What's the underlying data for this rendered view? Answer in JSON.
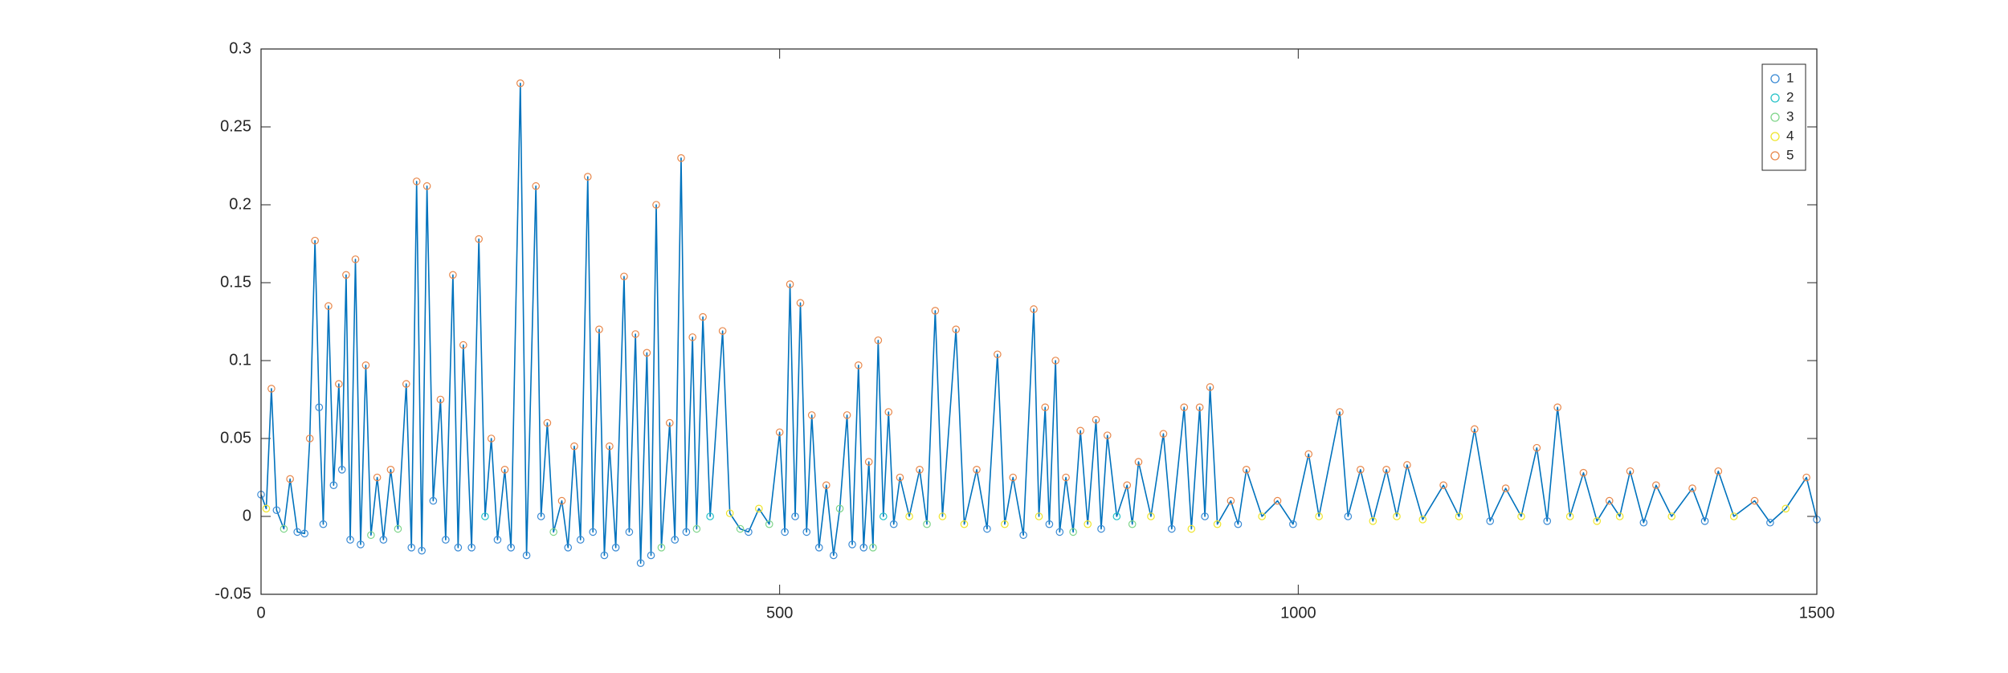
{
  "chart_data": {
    "type": "line",
    "xlim": [
      0,
      1500
    ],
    "ylim": [
      -0.05,
      0.3
    ],
    "xticks": [
      0,
      500,
      1000,
      1500
    ],
    "yticks": [
      -0.05,
      0,
      0.05,
      0.1,
      0.15,
      0.2,
      0.25,
      0.3
    ],
    "grid": false,
    "legend": "northeast",
    "line": {
      "color": "#0072bd",
      "x": [
        0,
        5,
        10,
        15,
        22,
        28,
        35,
        42,
        47,
        52,
        56,
        60,
        65,
        70,
        75,
        78,
        82,
        86,
        91,
        96,
        101,
        106,
        112,
        118,
        125,
        132,
        140,
        145,
        150,
        155,
        160,
        166,
        173,
        178,
        185,
        190,
        195,
        203,
        210,
        216,
        222,
        228,
        235,
        241,
        250,
        256,
        265,
        270,
        276,
        282,
        290,
        296,
        302,
        308,
        315,
        320,
        326,
        331,
        336,
        342,
        350,
        355,
        361,
        366,
        372,
        376,
        381,
        386,
        394,
        399,
        405,
        410,
        416,
        420,
        426,
        433,
        445,
        452,
        462,
        470,
        480,
        490,
        500,
        505,
        510,
        515,
        520,
        526,
        531,
        538,
        545,
        552,
        558,
        565,
        570,
        576,
        581,
        586,
        590,
        595,
        600,
        605,
        610,
        616,
        625,
        635,
        642,
        650,
        657,
        670,
        678,
        690,
        700,
        710,
        717,
        725,
        735,
        745,
        750,
        756,
        760,
        766,
        770,
        776,
        783,
        790,
        797,
        805,
        810,
        816,
        825,
        835,
        840,
        846,
        858,
        870,
        878,
        890,
        897,
        905,
        910,
        915,
        922,
        935,
        942,
        950,
        965,
        980,
        995,
        1010,
        1020,
        1040,
        1048,
        1060,
        1072,
        1085,
        1095,
        1105,
        1120,
        1140,
        1155,
        1170,
        1185,
        1200,
        1215,
        1230,
        1240,
        1250,
        1262,
        1275,
        1288,
        1300,
        1310,
        1320,
        1333,
        1345,
        1360,
        1380,
        1392,
        1405,
        1420,
        1440,
        1455,
        1470,
        1490,
        1500
      ],
      "values": [
        0.014,
        0.005,
        0.082,
        0.004,
        -0.008,
        0.024,
        -0.01,
        -0.011,
        0.05,
        0.177,
        0.07,
        -0.005,
        0.135,
        0.02,
        0.085,
        0.03,
        0.155,
        -0.015,
        0.165,
        -0.018,
        0.097,
        -0.012,
        0.025,
        -0.015,
        0.03,
        -0.008,
        0.085,
        -0.02,
        0.215,
        -0.022,
        0.212,
        0.01,
        0.075,
        -0.015,
        0.155,
        -0.02,
        0.11,
        -0.02,
        0.178,
        0.0,
        0.05,
        -0.015,
        0.03,
        -0.02,
        0.278,
        -0.025,
        0.212,
        0.0,
        0.06,
        -0.01,
        0.01,
        -0.02,
        0.045,
        -0.015,
        0.218,
        -0.01,
        0.12,
        -0.025,
        0.045,
        -0.02,
        0.154,
        -0.01,
        0.117,
        -0.03,
        0.105,
        -0.025,
        0.2,
        -0.02,
        0.06,
        -0.015,
        0.23,
        -0.01,
        0.115,
        -0.008,
        0.128,
        0.0,
        0.119,
        0.002,
        -0.008,
        -0.01,
        0.005,
        -0.005,
        0.054,
        -0.01,
        0.149,
        0.0,
        0.137,
        -0.01,
        0.065,
        -0.02,
        0.02,
        -0.025,
        0.005,
        0.065,
        -0.018,
        0.097,
        -0.02,
        0.035,
        -0.02,
        0.113,
        0.0,
        0.067,
        -0.005,
        0.025,
        0.0,
        0.03,
        -0.005,
        0.132,
        0.0,
        0.12,
        -0.005,
        0.03,
        -0.008,
        0.104,
        -0.005,
        0.025,
        -0.012,
        0.133,
        0.0,
        0.07,
        -0.005,
        0.1,
        -0.01,
        0.025,
        -0.01,
        0.055,
        -0.005,
        0.062,
        -0.008,
        0.052,
        0.0,
        0.02,
        -0.005,
        0.035,
        0.0,
        0.053,
        -0.008,
        0.07,
        -0.008,
        0.07,
        0.0,
        0.083,
        -0.005,
        0.01,
        -0.005,
        0.03,
        0.0,
        0.01,
        -0.005,
        0.04,
        0.0,
        0.067,
        0.0,
        0.03,
        -0.003,
        0.03,
        0.0,
        0.033,
        -0.002,
        0.02,
        0.0,
        0.056,
        -0.003,
        0.018,
        0.0,
        0.044,
        -0.003,
        0.07,
        0.0,
        0.028,
        -0.003,
        0.01,
        0.0,
        0.029,
        -0.004,
        0.02,
        0.0,
        0.018,
        -0.003,
        0.029,
        0.0,
        0.01,
        -0.004,
        0.005,
        0.025,
        -0.002
      ]
    },
    "series": [
      {
        "name": "1",
        "color": "#3a8ad4",
        "x": [
          0,
          15,
          35,
          42,
          56,
          60,
          70,
          78,
          86,
          96,
          118,
          145,
          155,
          166,
          178,
          190,
          203,
          228,
          241,
          256,
          270,
          296,
          308,
          320,
          331,
          342,
          355,
          366,
          376,
          399,
          410,
          470,
          505,
          515,
          526,
          538,
          552,
          570,
          581,
          610,
          700,
          735,
          760,
          770,
          810,
          878,
          910,
          942,
          995,
          1048,
          1185,
          1240,
          1333,
          1392,
          1455,
          1500
        ],
        "values": [
          0.014,
          0.004,
          -0.01,
          -0.011,
          0.07,
          -0.005,
          0.02,
          0.03,
          -0.015,
          -0.018,
          -0.015,
          -0.02,
          -0.022,
          0.01,
          -0.015,
          -0.02,
          -0.02,
          -0.015,
          -0.02,
          -0.025,
          0.0,
          -0.02,
          -0.015,
          -0.01,
          -0.025,
          -0.02,
          -0.01,
          -0.03,
          -0.025,
          -0.015,
          -0.01,
          -0.01,
          -0.01,
          0.0,
          -0.01,
          -0.02,
          -0.025,
          -0.018,
          -0.02,
          -0.005,
          -0.008,
          -0.012,
          -0.005,
          -0.01,
          -0.008,
          -0.008,
          0.0,
          -0.005,
          -0.005,
          0.0,
          -0.003,
          -0.003,
          -0.004,
          -0.003,
          -0.004,
          -0.002
        ]
      },
      {
        "name": "2",
        "color": "#27c2c8",
        "x": [
          216,
          433,
          600,
          825
        ],
        "values": [
          0.0,
          0.0,
          0.0,
          0.0
        ]
      },
      {
        "name": "3",
        "color": "#7fd58a",
        "x": [
          22,
          106,
          132,
          282,
          386,
          420,
          462,
          490,
          558,
          590,
          642,
          783,
          840
        ],
        "values": [
          -0.008,
          -0.012,
          -0.008,
          -0.01,
          -0.02,
          -0.008,
          -0.008,
          -0.005,
          0.005,
          -0.02,
          -0.005,
          -0.01,
          -0.005
        ]
      },
      {
        "name": "4",
        "color": "#efe52c",
        "x": [
          5,
          452,
          480,
          625,
          657,
          678,
          717,
          750,
          797,
          858,
          897,
          922,
          965,
          1020,
          1072,
          1095,
          1120,
          1155,
          1215,
          1262,
          1288,
          1310,
          1360,
          1420,
          1470
        ],
        "values": [
          0.005,
          0.002,
          0.005,
          0.0,
          0.0,
          -0.005,
          -0.005,
          0.0,
          -0.005,
          0.0,
          -0.008,
          -0.005,
          0.0,
          0.0,
          -0.003,
          0.0,
          -0.002,
          0.0,
          0.0,
          0.0,
          -0.003,
          0.0,
          0.0,
          0.0,
          0.005
        ]
      },
      {
        "name": "5",
        "color": "#e8874a",
        "x": [
          10,
          28,
          47,
          52,
          65,
          75,
          82,
          91,
          101,
          112,
          125,
          140,
          150,
          160,
          173,
          185,
          195,
          210,
          222,
          235,
          250,
          265,
          276,
          290,
          302,
          315,
          326,
          336,
          350,
          361,
          372,
          381,
          394,
          405,
          416,
          426,
          445,
          500,
          510,
          520,
          531,
          545,
          565,
          576,
          586,
          595,
          605,
          616,
          635,
          650,
          670,
          690,
          710,
          725,
          745,
          756,
          766,
          776,
          790,
          805,
          816,
          835,
          846,
          870,
          890,
          905,
          915,
          935,
          950,
          980,
          1010,
          1040,
          1060,
          1085,
          1105,
          1140,
          1170,
          1200,
          1230,
          1250,
          1275,
          1300,
          1320,
          1345,
          1380,
          1405,
          1440,
          1490
        ],
        "values": [
          0.082,
          0.024,
          0.05,
          0.177,
          0.135,
          0.085,
          0.155,
          0.165,
          0.097,
          0.025,
          0.03,
          0.085,
          0.215,
          0.212,
          0.075,
          0.155,
          0.11,
          0.178,
          0.05,
          0.03,
          0.278,
          0.212,
          0.06,
          0.01,
          0.045,
          0.218,
          0.12,
          0.045,
          0.154,
          0.117,
          0.105,
          0.2,
          0.06,
          0.23,
          0.115,
          0.128,
          0.119,
          0.054,
          0.149,
          0.137,
          0.065,
          0.02,
          0.065,
          0.097,
          0.035,
          0.113,
          0.067,
          0.025,
          0.03,
          0.132,
          0.12,
          0.03,
          0.104,
          0.025,
          0.133,
          0.07,
          0.1,
          0.025,
          0.055,
          0.062,
          0.052,
          0.02,
          0.035,
          0.053,
          0.07,
          0.07,
          0.083,
          0.01,
          0.03,
          0.01,
          0.04,
          0.067,
          0.03,
          0.03,
          0.033,
          0.02,
          0.056,
          0.018,
          0.044,
          0.07,
          0.028,
          0.01,
          0.029,
          0.02,
          0.018,
          0.029,
          0.01,
          0.025
        ]
      }
    ]
  }
}
